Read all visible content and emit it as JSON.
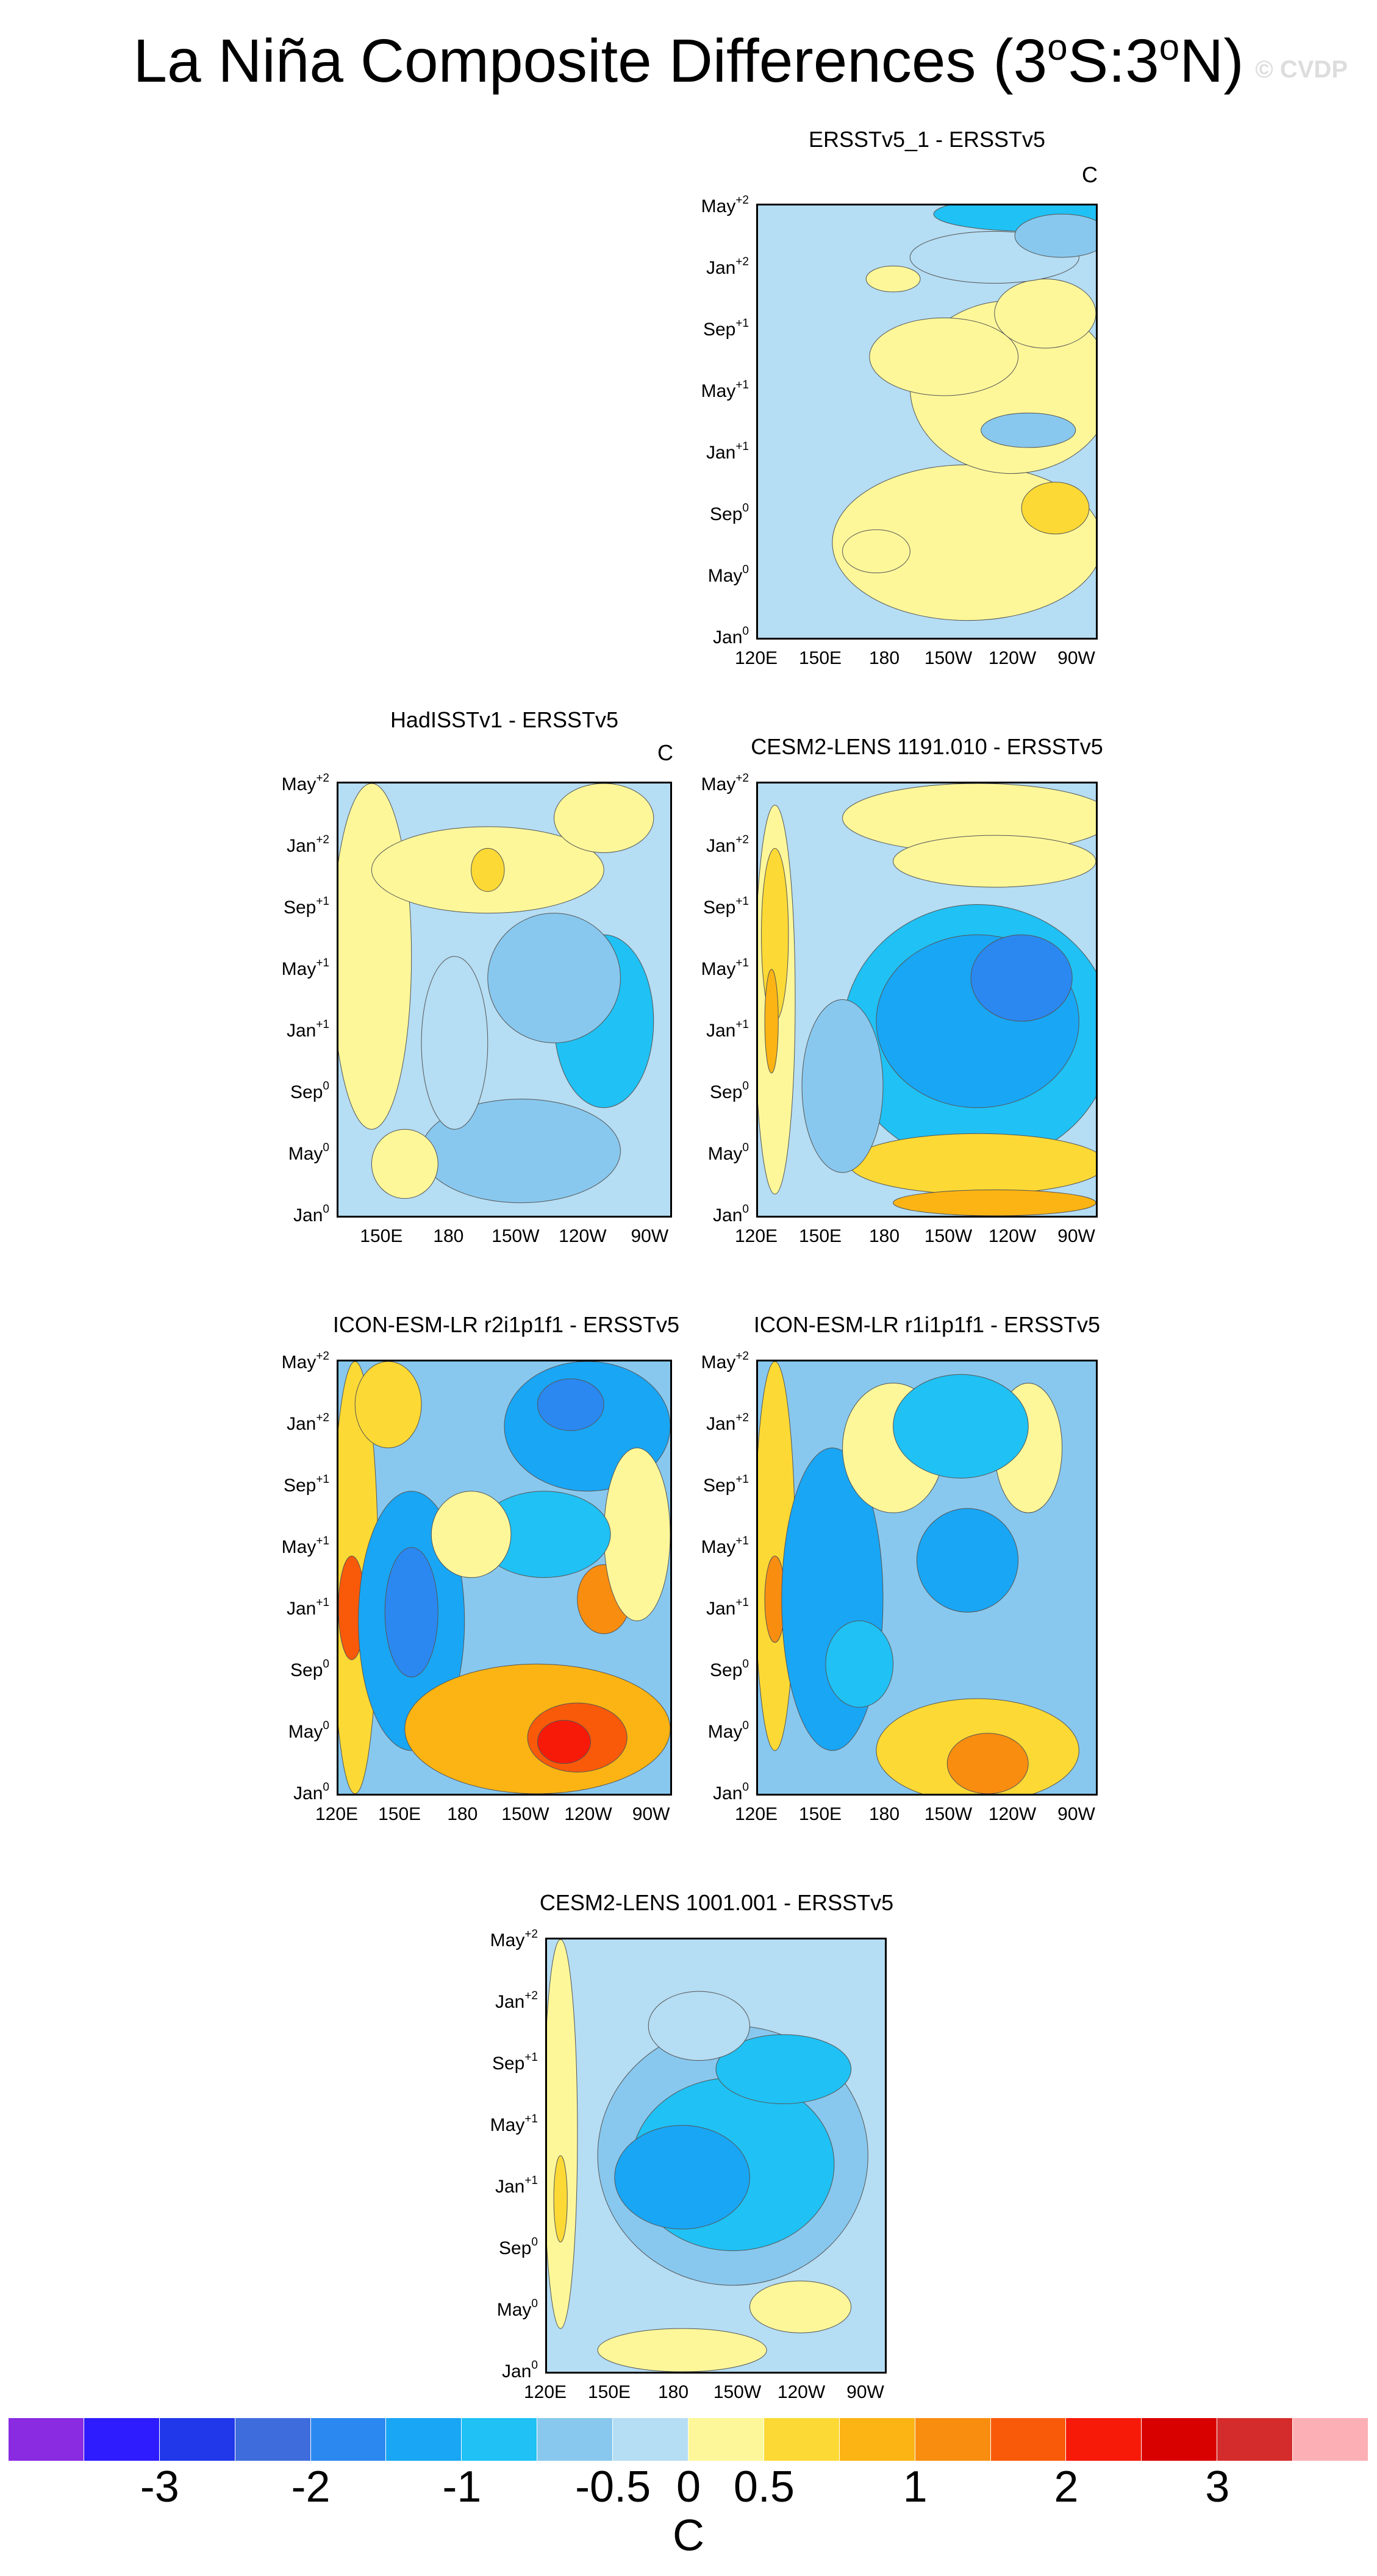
{
  "header": {
    "title_prefix": "La Niña Composite Differences (3",
    "title_deg1": "o",
    "title_mid": "S:3",
    "title_deg2": "o",
    "title_suffix": "N)",
    "watermark": "© CVDP"
  },
  "colors": {
    "levels": [
      "#8a2be2",
      "#2e1cff",
      "#2038ea",
      "#3f6cdd",
      "#2b88f0",
      "#19a6f5",
      "#20c1f4",
      "#88c8ee",
      "#b5ddf3",
      "#fdf79a",
      "#fcd935",
      "#fbb413",
      "#f98d10",
      "#f85a0a",
      "#f71a08",
      "#d90000",
      "#d42c2c",
      "#fcb0b5"
    ],
    "frame": "#000000"
  },
  "chart_data": [
    {
      "type": "heatmap",
      "title": "ERSSTv5_1 - ERSSTv5",
      "units": "C",
      "x_ticks": [
        "120E",
        "150E",
        "180",
        "150W",
        "120W",
        "90W"
      ],
      "y_ticks": [
        {
          "month": "Jan",
          "sup": "0"
        },
        {
          "month": "May",
          "sup": "0"
        },
        {
          "month": "Sep",
          "sup": "0"
        },
        {
          "month": "Jan",
          "sup": "+1"
        },
        {
          "month": "May",
          "sup": "+1"
        },
        {
          "month": "Sep",
          "sup": "+1"
        },
        {
          "month": "Jan",
          "sup": "+2"
        },
        {
          "month": "May",
          "sup": "+2"
        }
      ],
      "xlim": [
        120,
        280
      ],
      "description_values": [
        {
          "lon": 150,
          "time": 1,
          "value": -0.3
        },
        {
          "lon": 210,
          "time": 2,
          "value": 0.2
        },
        {
          "lon": 240,
          "time": 2,
          "value": 0.2
        },
        {
          "lon": 230,
          "time": 4,
          "value": -0.3
        },
        {
          "lon": 250,
          "time": 6,
          "value": 0.3
        }
      ]
    },
    {
      "type": "heatmap",
      "title": "HadISSTv1 - ERSSTv5",
      "units": "C",
      "x_ticks": [
        "150E",
        "180",
        "150W",
        "120W",
        "90W"
      ],
      "y_ticks": [
        {
          "month": "Jan",
          "sup": "0"
        },
        {
          "month": "May",
          "sup": "0"
        },
        {
          "month": "Sep",
          "sup": "0"
        },
        {
          "month": "Jan",
          "sup": "+1"
        },
        {
          "month": "May",
          "sup": "+1"
        },
        {
          "month": "Sep",
          "sup": "+1"
        },
        {
          "month": "Jan",
          "sup": "+2"
        },
        {
          "month": "May",
          "sup": "+2"
        }
      ],
      "xlim": [
        130,
        280
      ],
      "description_values": [
        {
          "lon": 140,
          "time": 3,
          "value": 0.2
        },
        {
          "lon": 230,
          "time": 5,
          "value": -0.5
        },
        {
          "lon": 260,
          "time": 6,
          "value": -0.7
        },
        {
          "lon": 200,
          "time": 1,
          "value": 0.2
        }
      ]
    },
    {
      "type": "heatmap",
      "title": "CESM2-LENS 1191.010 - ERSSTv5",
      "units": "C",
      "x_ticks": [
        "120E",
        "150E",
        "180",
        "150W",
        "120W",
        "90W"
      ],
      "y_ticks": [
        {
          "month": "Jan",
          "sup": "0"
        },
        {
          "month": "May",
          "sup": "0"
        },
        {
          "month": "Sep",
          "sup": "0"
        },
        {
          "month": "Jan",
          "sup": "+1"
        },
        {
          "month": "May",
          "sup": "+1"
        },
        {
          "month": "Sep",
          "sup": "+1"
        },
        {
          "month": "Jan",
          "sup": "+2"
        },
        {
          "month": "May",
          "sup": "+2"
        }
      ],
      "xlim": [
        120,
        280
      ],
      "description_values": [
        {
          "lon": 125,
          "time": 5,
          "value": 0.8
        },
        {
          "lon": 220,
          "time": 3.5,
          "value": -1.3
        },
        {
          "lon": 260,
          "time": 3,
          "value": -1.5
        },
        {
          "lon": 230,
          "time": 7,
          "value": 0.5
        },
        {
          "lon": 220,
          "time": 1,
          "value": 0.5
        }
      ]
    },
    {
      "type": "heatmap",
      "title": "ICON-ESM-LR r2i1p1f1 - ERSSTv5",
      "units": "C",
      "x_ticks": [
        "120E",
        "150E",
        "180",
        "150W",
        "120W",
        "90W"
      ],
      "y_ticks": [
        {
          "month": "Jan",
          "sup": "0"
        },
        {
          "month": "May",
          "sup": "0"
        },
        {
          "month": "Sep",
          "sup": "0"
        },
        {
          "month": "Jan",
          "sup": "+1"
        },
        {
          "month": "May",
          "sup": "+1"
        },
        {
          "month": "Sep",
          "sup": "+1"
        },
        {
          "month": "Jan",
          "sup": "+2"
        },
        {
          "month": "May",
          "sup": "+2"
        }
      ],
      "xlim": [
        120,
        280
      ],
      "description_values": [
        {
          "lon": 125,
          "time": 3.2,
          "value": 2.0
        },
        {
          "lon": 150,
          "time": 3.2,
          "value": -1.8
        },
        {
          "lon": 250,
          "time": 6.7,
          "value": 1.8
        },
        {
          "lon": 245,
          "time": 1.0,
          "value": -2.0
        },
        {
          "lon": 240,
          "time": 2.5,
          "value": -1.4
        }
      ]
    },
    {
      "type": "heatmap",
      "title": "ICON-ESM-LR r1i1p1f1 - ERSSTv5",
      "units": "C",
      "x_ticks": [
        "120E",
        "150E",
        "180",
        "150W",
        "120W",
        "90W"
      ],
      "y_ticks": [
        {
          "month": "Jan",
          "sup": "0"
        },
        {
          "month": "May",
          "sup": "0"
        },
        {
          "month": "Sep",
          "sup": "0"
        },
        {
          "month": "Jan",
          "sup": "+1"
        },
        {
          "month": "May",
          "sup": "+1"
        },
        {
          "month": "Sep",
          "sup": "+1"
        },
        {
          "month": "Jan",
          "sup": "+2"
        },
        {
          "month": "May",
          "sup": "+2"
        }
      ],
      "xlim": [
        120,
        280
      ],
      "description_values": [
        {
          "lon": 125,
          "time": 3.5,
          "value": 1.3
        },
        {
          "lon": 155,
          "time": 3.7,
          "value": -1.5
        },
        {
          "lon": 240,
          "time": 7.2,
          "value": 2.0
        },
        {
          "lon": 240,
          "time": 3.0,
          "value": -1.5
        },
        {
          "lon": 260,
          "time": 1.5,
          "value": 0.3
        }
      ]
    },
    {
      "type": "heatmap",
      "title": "CESM2-LENS 1001.001 - ERSSTv5",
      "units": "C",
      "x_ticks": [
        "120E",
        "150E",
        "180",
        "150W",
        "120W",
        "90W"
      ],
      "y_ticks": [
        {
          "month": "Jan",
          "sup": "0"
        },
        {
          "month": "May",
          "sup": "0"
        },
        {
          "month": "Sep",
          "sup": "0"
        },
        {
          "month": "Jan",
          "sup": "+1"
        },
        {
          "month": "May",
          "sup": "+1"
        },
        {
          "month": "Sep",
          "sup": "+1"
        },
        {
          "month": "Jan",
          "sup": "+2"
        },
        {
          "month": "May",
          "sup": "+2"
        }
      ],
      "xlim": [
        120,
        280
      ],
      "description_values": [
        {
          "lon": 125,
          "time": 4.5,
          "value": 0.6
        },
        {
          "lon": 210,
          "time": 3.5,
          "value": -1.2
        },
        {
          "lon": 260,
          "time": 3.0,
          "value": -1.3
        },
        {
          "lon": 210,
          "time": 7.5,
          "value": 0.3
        }
      ]
    }
  ],
  "colorbar": {
    "labels": [
      "-3",
      "-2",
      "-1",
      "-0.5",
      "0",
      "0.5",
      "1",
      "2",
      "3"
    ],
    "units": "C"
  }
}
